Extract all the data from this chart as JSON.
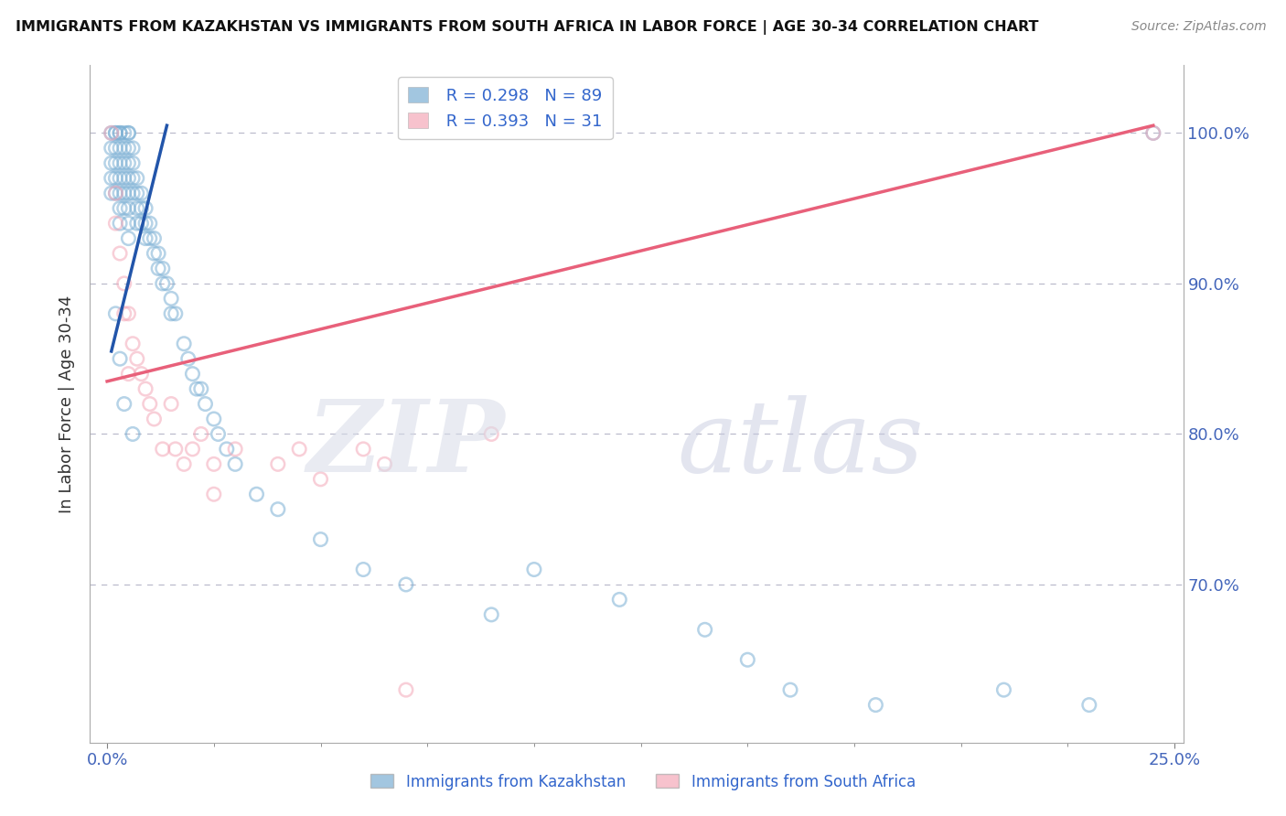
{
  "title": "IMMIGRANTS FROM KAZAKHSTAN VS IMMIGRANTS FROM SOUTH AFRICA IN LABOR FORCE | AGE 30-34 CORRELATION CHART",
  "source": "Source: ZipAtlas.com",
  "ylabel": "In Labor Force | Age 30-34",
  "ytick_labels": [
    "70.0%",
    "80.0%",
    "90.0%",
    "100.0%"
  ],
  "ytick_values": [
    0.7,
    0.8,
    0.9,
    1.0
  ],
  "xtick_labels": [
    "0.0%",
    "25.0%"
  ],
  "xtick_values": [
    0.0,
    0.25
  ],
  "legend_r1": "R = 0.298",
  "legend_n1": "N = 89",
  "legend_r2": "R = 0.393",
  "legend_n2": "N = 31",
  "blue_color": "#7BAFD4",
  "pink_color": "#F4A8B8",
  "trend_blue": "#2255AA",
  "trend_pink": "#E8607A",
  "blue_scatter_alpha": 0.55,
  "pink_scatter_alpha": 0.55,
  "marker_size": 110,
  "kaz_x": [
    0.001,
    0.001,
    0.001,
    0.001,
    0.001,
    0.002,
    0.002,
    0.002,
    0.002,
    0.002,
    0.002,
    0.003,
    0.003,
    0.003,
    0.003,
    0.003,
    0.003,
    0.003,
    0.003,
    0.004,
    0.004,
    0.004,
    0.004,
    0.004,
    0.004,
    0.005,
    0.005,
    0.005,
    0.005,
    0.005,
    0.005,
    0.005,
    0.005,
    0.005,
    0.006,
    0.006,
    0.006,
    0.006,
    0.007,
    0.007,
    0.007,
    0.007,
    0.008,
    0.008,
    0.008,
    0.009,
    0.009,
    0.009,
    0.01,
    0.01,
    0.011,
    0.011,
    0.012,
    0.012,
    0.013,
    0.013,
    0.014,
    0.015,
    0.015,
    0.016,
    0.018,
    0.019,
    0.02,
    0.021,
    0.022,
    0.023,
    0.025,
    0.026,
    0.028,
    0.03,
    0.035,
    0.04,
    0.05,
    0.06,
    0.07,
    0.09,
    0.1,
    0.12,
    0.14,
    0.15,
    0.16,
    0.18,
    0.21,
    0.23,
    0.245,
    0.002,
    0.003,
    0.004,
    0.006
  ],
  "kaz_y": [
    1.0,
    0.99,
    0.98,
    0.97,
    0.96,
    1.0,
    1.0,
    0.99,
    0.98,
    0.97,
    0.96,
    1.0,
    1.0,
    0.99,
    0.98,
    0.97,
    0.96,
    0.95,
    0.94,
    1.0,
    0.99,
    0.98,
    0.97,
    0.96,
    0.95,
    1.0,
    1.0,
    0.99,
    0.98,
    0.97,
    0.96,
    0.95,
    0.94,
    0.93,
    0.99,
    0.98,
    0.97,
    0.96,
    0.97,
    0.96,
    0.95,
    0.94,
    0.96,
    0.95,
    0.94,
    0.95,
    0.94,
    0.93,
    0.94,
    0.93,
    0.93,
    0.92,
    0.92,
    0.91,
    0.91,
    0.9,
    0.9,
    0.89,
    0.88,
    0.88,
    0.86,
    0.85,
    0.84,
    0.83,
    0.83,
    0.82,
    0.81,
    0.8,
    0.79,
    0.78,
    0.76,
    0.75,
    0.73,
    0.71,
    0.7,
    0.68,
    0.71,
    0.69,
    0.67,
    0.65,
    0.63,
    0.62,
    0.63,
    0.62,
    1.0,
    0.88,
    0.85,
    0.82,
    0.8
  ],
  "sa_x": [
    0.001,
    0.002,
    0.002,
    0.003,
    0.004,
    0.004,
    0.005,
    0.005,
    0.006,
    0.007,
    0.008,
    0.009,
    0.01,
    0.011,
    0.013,
    0.015,
    0.016,
    0.018,
    0.02,
    0.022,
    0.025,
    0.025,
    0.03,
    0.04,
    0.045,
    0.05,
    0.06,
    0.065,
    0.07,
    0.09,
    0.245
  ],
  "sa_y": [
    1.0,
    0.96,
    0.94,
    0.92,
    0.9,
    0.88,
    0.88,
    0.84,
    0.86,
    0.85,
    0.84,
    0.83,
    0.82,
    0.81,
    0.79,
    0.82,
    0.79,
    0.78,
    0.79,
    0.8,
    0.78,
    0.76,
    0.79,
    0.78,
    0.79,
    0.77,
    0.79,
    0.78,
    0.63,
    0.8,
    1.0
  ],
  "kaz_trend_x": [
    0.001,
    0.014
  ],
  "kaz_trend_y": [
    0.855,
    1.005
  ],
  "sa_trend_x": [
    0.0,
    0.245
  ],
  "sa_trend_y": [
    0.835,
    1.005
  ]
}
